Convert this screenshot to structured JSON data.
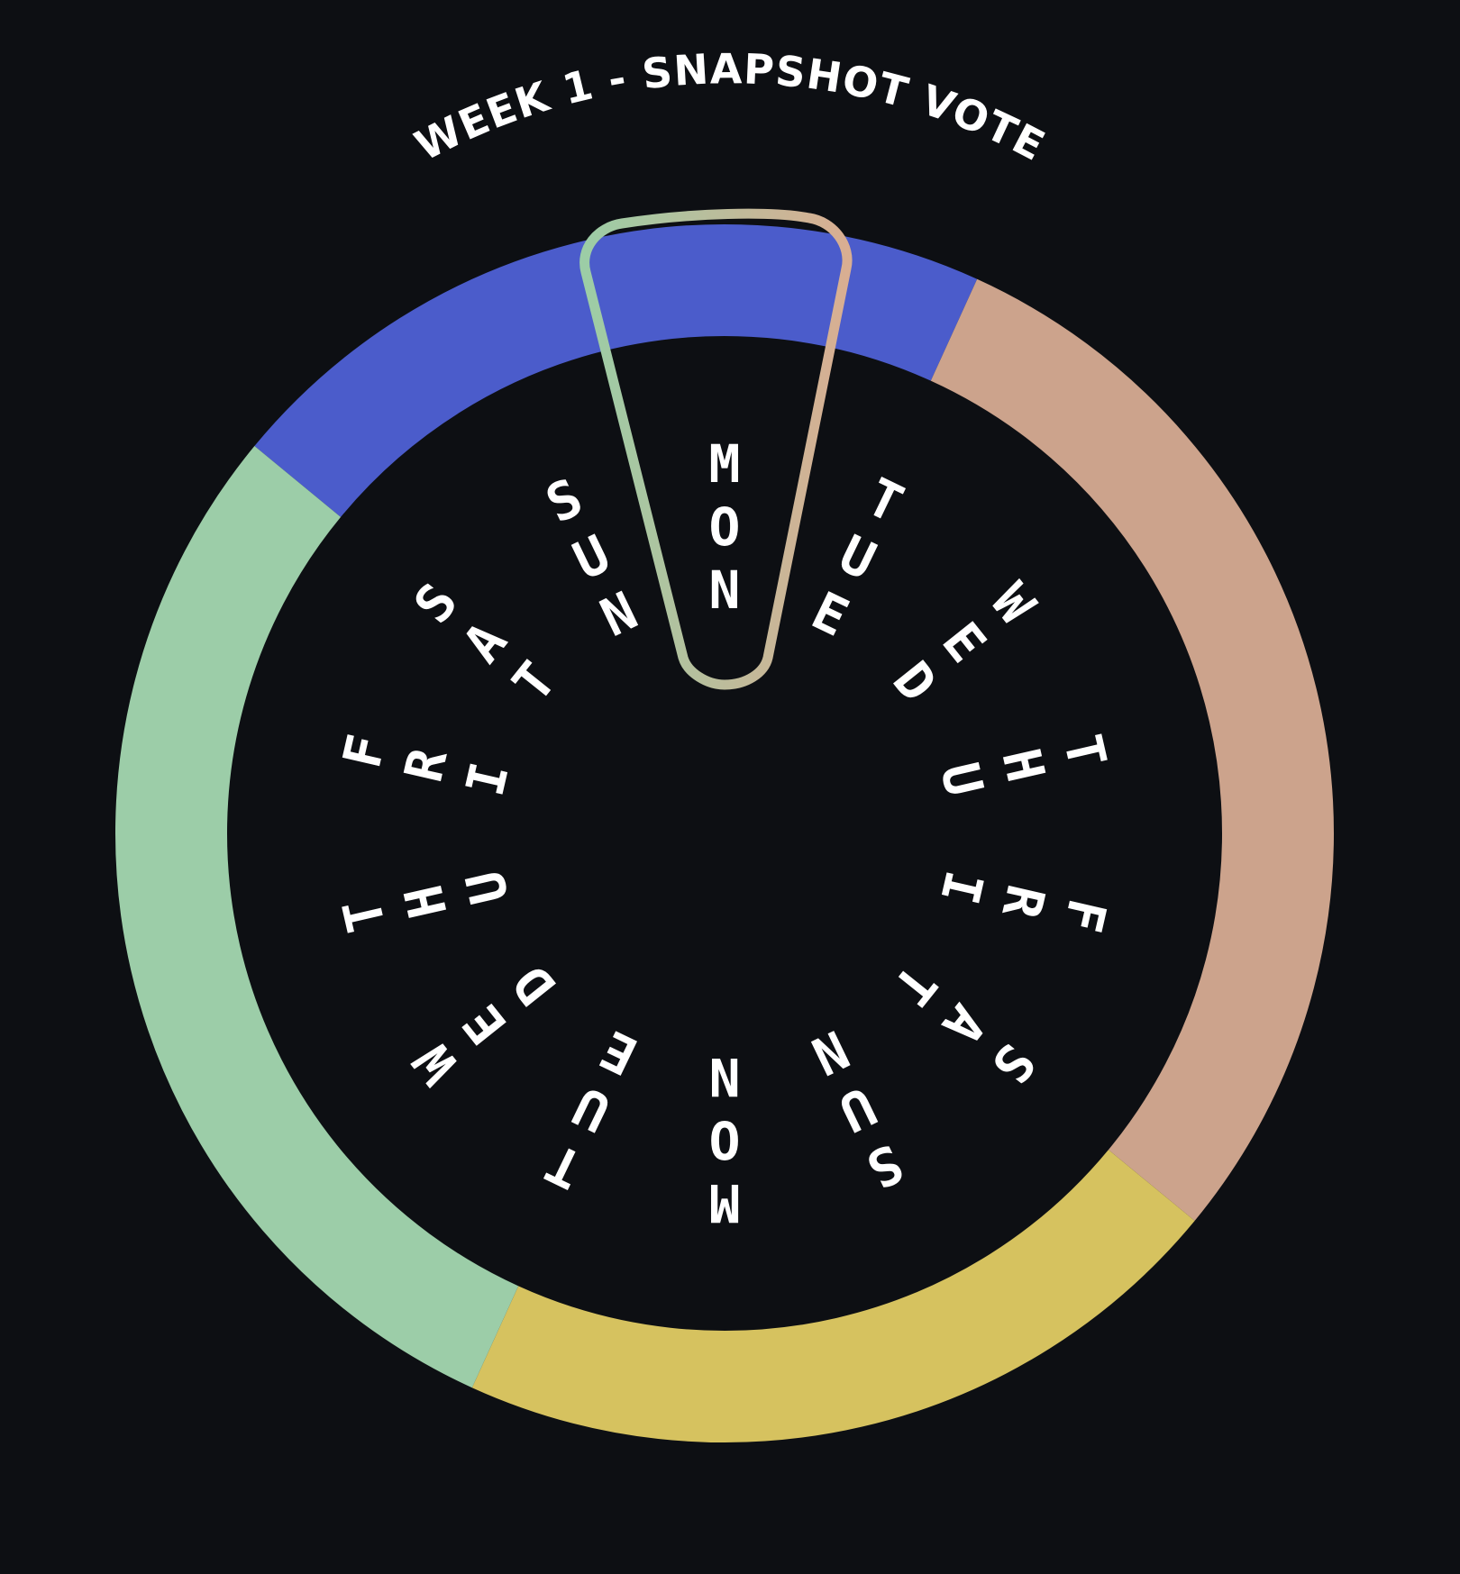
{
  "title": "WEEK 1 - SNAPSHOT VOTE",
  "background_color": "#0d0f13",
  "pointer": {
    "selected_label": "MON",
    "gradient_colors": [
      "#9ccda6",
      "#d9ae92"
    ]
  },
  "ring_segments": [
    {
      "color": "#4b5ccb",
      "share": 0.2083
    },
    {
      "color": "#cca38c",
      "share": 0.2917
    },
    {
      "color": "#d6c25f",
      "share": 0.2083
    },
    {
      "color": "#9ccda8",
      "share": 0.2917
    }
  ],
  "day_labels": [
    "MON",
    "TUE",
    "WED",
    "THU",
    "FRI",
    "SAT",
    "SUN",
    "MON",
    "TUE",
    "WED",
    "THU",
    "FRI",
    "SAT",
    "SUN"
  ]
}
